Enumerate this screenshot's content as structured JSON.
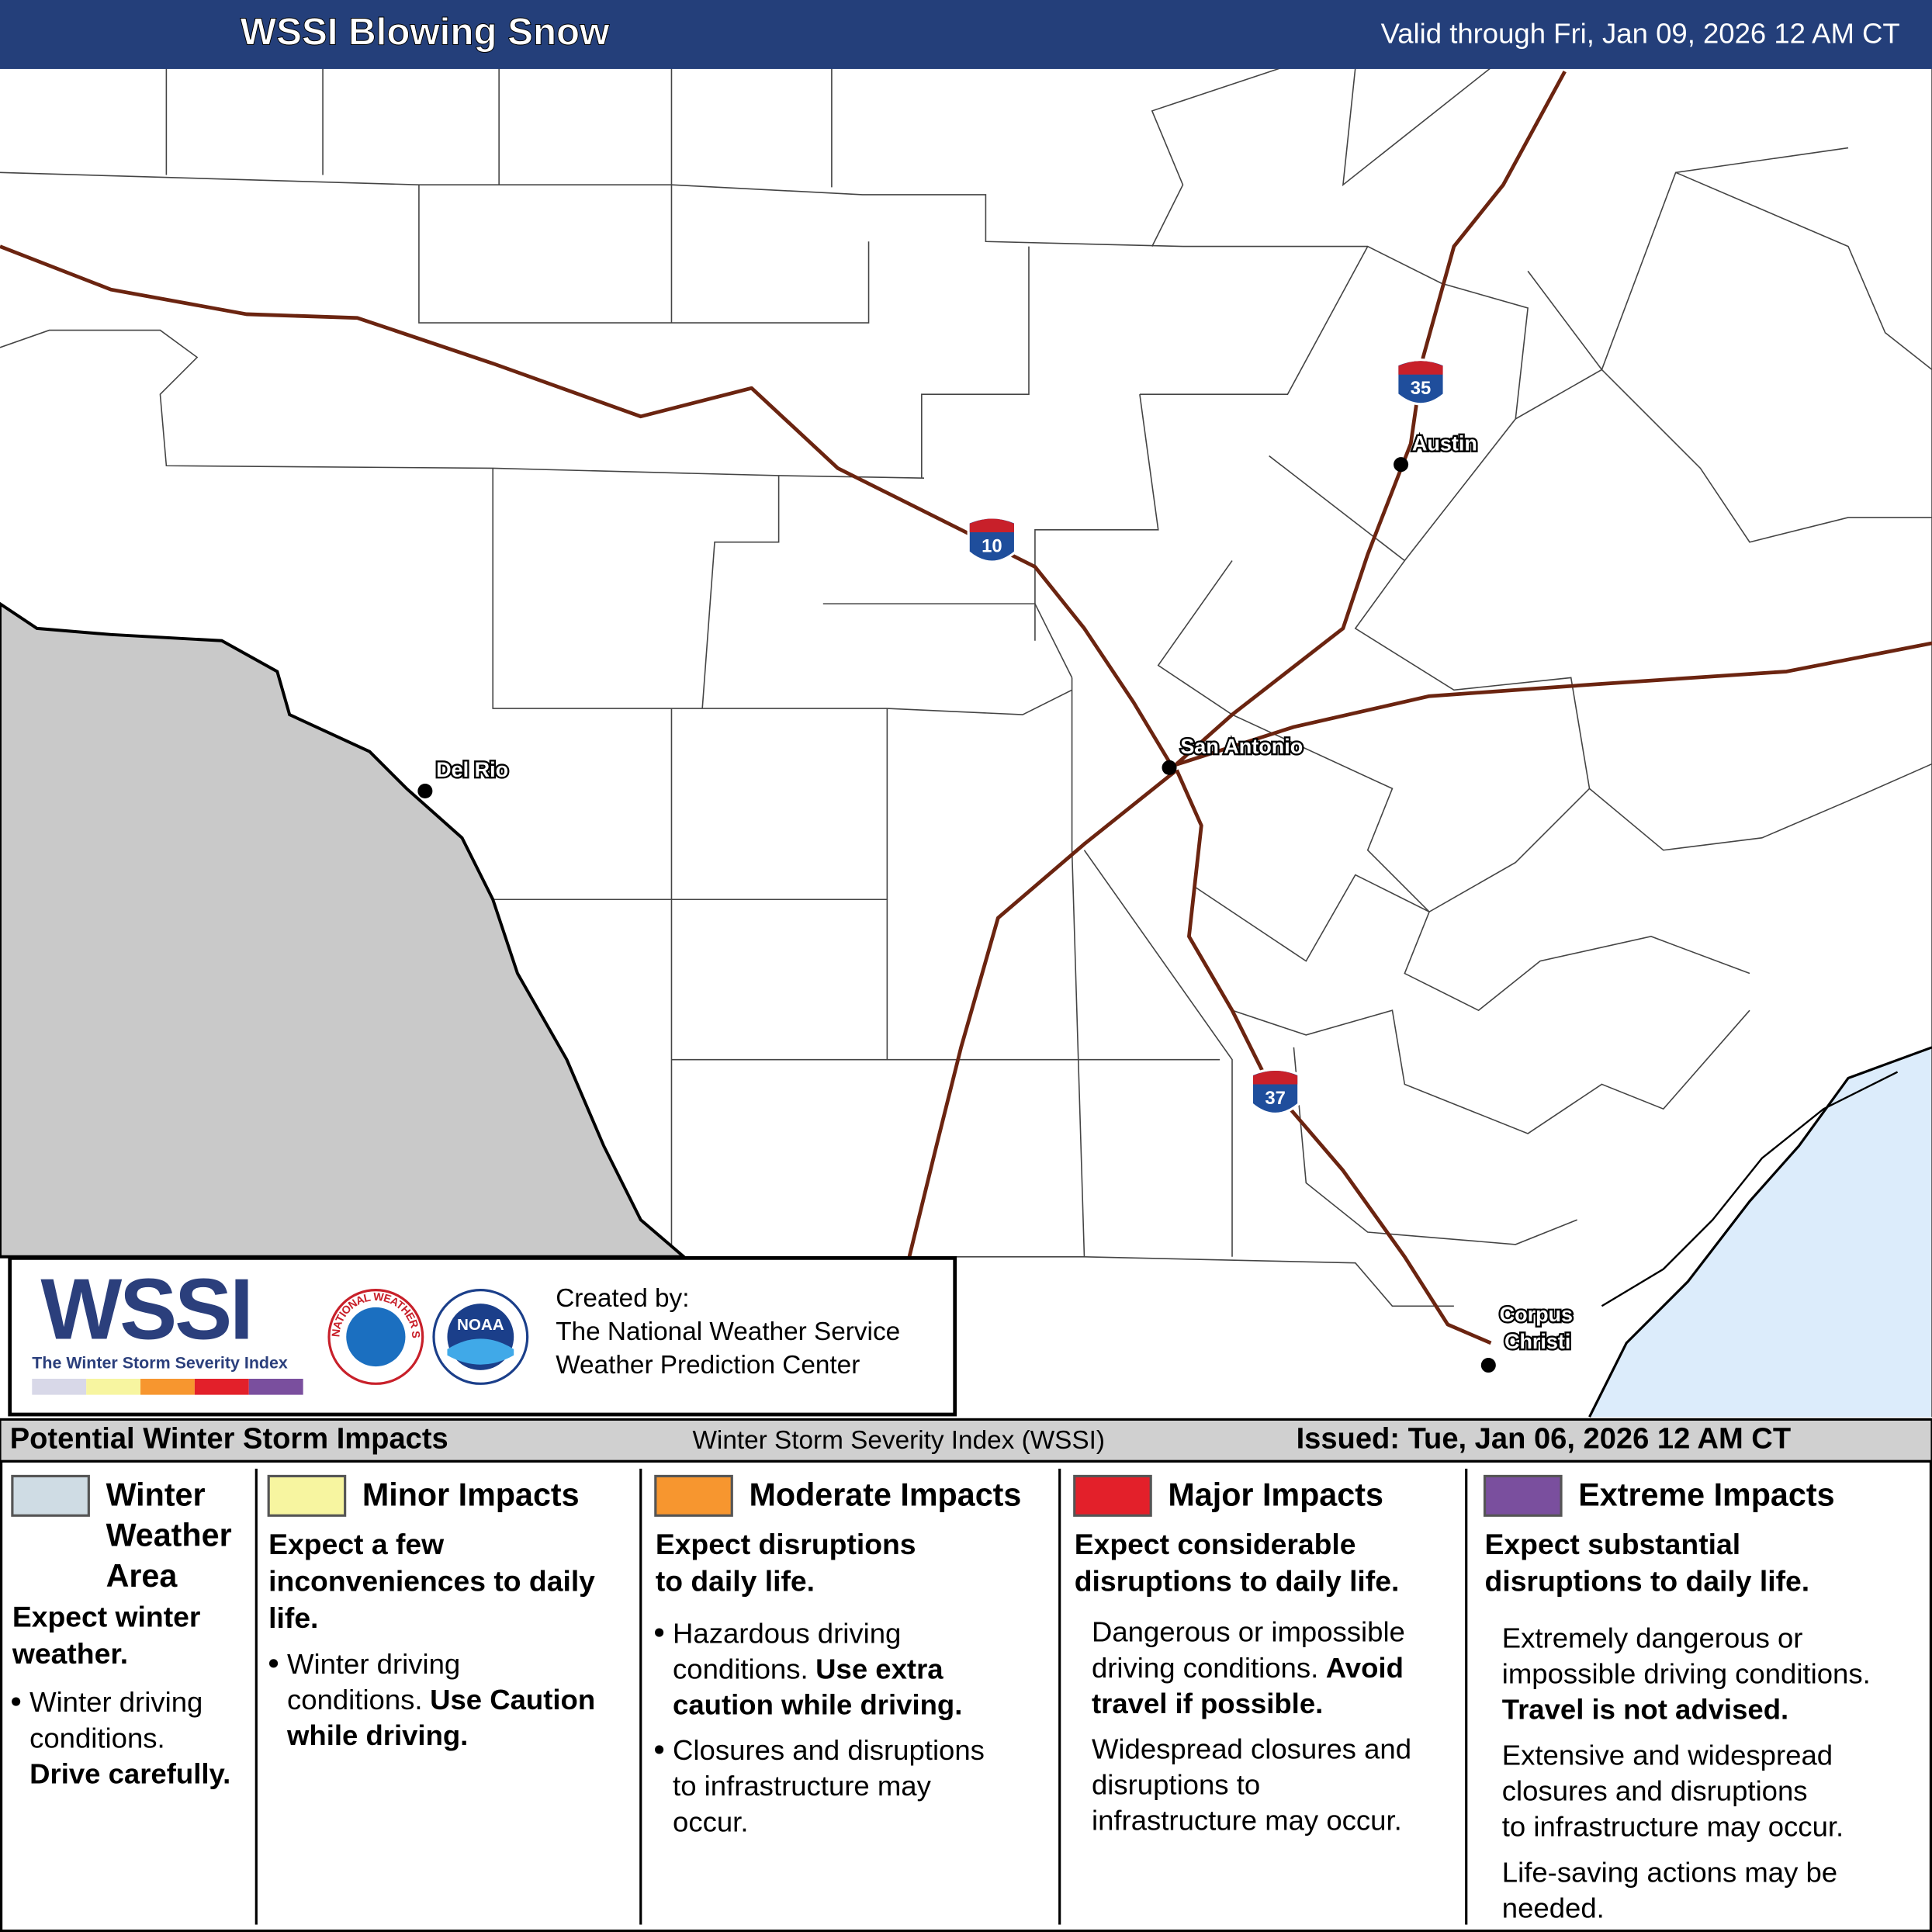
{
  "header": {
    "title": "WSSI Blowing Snow",
    "valid": "Valid through Fri, Jan 09, 2026 12 AM CT"
  },
  "map": {
    "cities": [
      "Austin",
      "San Antonio",
      "Del Rio",
      "Corpus Christi"
    ],
    "interstates": [
      "35",
      "10",
      "37"
    ]
  },
  "logo": {
    "wordmark": "WSSI",
    "tagline": "The Winter Storm Severity Index",
    "nws_seal": "NATIONAL WEATHER SERVICE",
    "noaa_seal": "NOAA",
    "credits": [
      "Created by:",
      "The National Weather Service",
      "Weather Prediction Center"
    ]
  },
  "legend": {
    "title": "Potential Winter Storm Impacts",
    "subtitle": "Winter Storm Severity Index (WSSI)",
    "issued": "Issued: Tue, Jan 06, 2026 12 AM CT",
    "columns": [
      {
        "name": [
          "Winter",
          "Weather",
          "Area"
        ],
        "color": "#cfdce4",
        "bulleted": true,
        "summary": [
          "Expect winter",
          "weather."
        ],
        "items": [
          [
            [
              "Winter driving"
            ],
            [
              "conditions."
            ],
            [
              {
                "bold": "Drive carefully."
              }
            ]
          ]
        ]
      },
      {
        "name": [
          "Minor Impacts"
        ],
        "color": "#f7f5a0",
        "bulleted": true,
        "summary": [
          "Expect a few",
          "inconveniences to daily",
          "life."
        ],
        "items": [
          [
            [
              "Winter driving"
            ],
            [
              "conditions.",
              {
                "bold": "Use Caution"
              }
            ],
            [
              {
                "bold": "while driving."
              }
            ]
          ]
        ]
      },
      {
        "name": [
          "Moderate Impacts"
        ],
        "color": "#f7962f",
        "bulleted": true,
        "summary": [
          "Expect disruptions",
          "to daily life."
        ],
        "items": [
          [
            [
              "Hazardous driving"
            ],
            [
              "conditions.",
              {
                "bold": "Use extra"
              }
            ],
            [
              {
                "bold": "caution while driving."
              }
            ]
          ],
          [
            [
              "Closures and disruptions"
            ],
            [
              "to infrastructure may"
            ],
            [
              "occur."
            ]
          ]
        ]
      },
      {
        "name": [
          "Major Impacts"
        ],
        "color": "#e3202a",
        "bulleted": false,
        "summary": [
          "Expect considerable",
          "disruptions to daily life."
        ],
        "items": [
          [
            [
              "Dangerous or impossible"
            ],
            [
              "driving conditions.",
              {
                "bold": "Avoid"
              }
            ],
            [
              {
                "bold": "travel if possible."
              }
            ]
          ],
          [
            [
              "Widespread closures and"
            ],
            [
              "disruptions to"
            ],
            [
              "infrastructure may occur."
            ]
          ]
        ]
      },
      {
        "name": [
          "Extreme Impacts"
        ],
        "color": "#7a4f9e",
        "bulleted": false,
        "summary": [
          "Expect substantial",
          "disruptions to daily life."
        ],
        "items": [
          [
            [
              "Extremely dangerous or"
            ],
            [
              "impossible driving conditions."
            ],
            [
              {
                "bold": "Travel is not advised."
              }
            ]
          ],
          [
            [
              "Extensive and widespread"
            ],
            [
              "closures and disruptions"
            ],
            [
              "to infrastructure may occur."
            ]
          ],
          [
            [
              "Life-saving actions may be"
            ],
            [
              "needed."
            ]
          ]
        ]
      }
    ]
  }
}
